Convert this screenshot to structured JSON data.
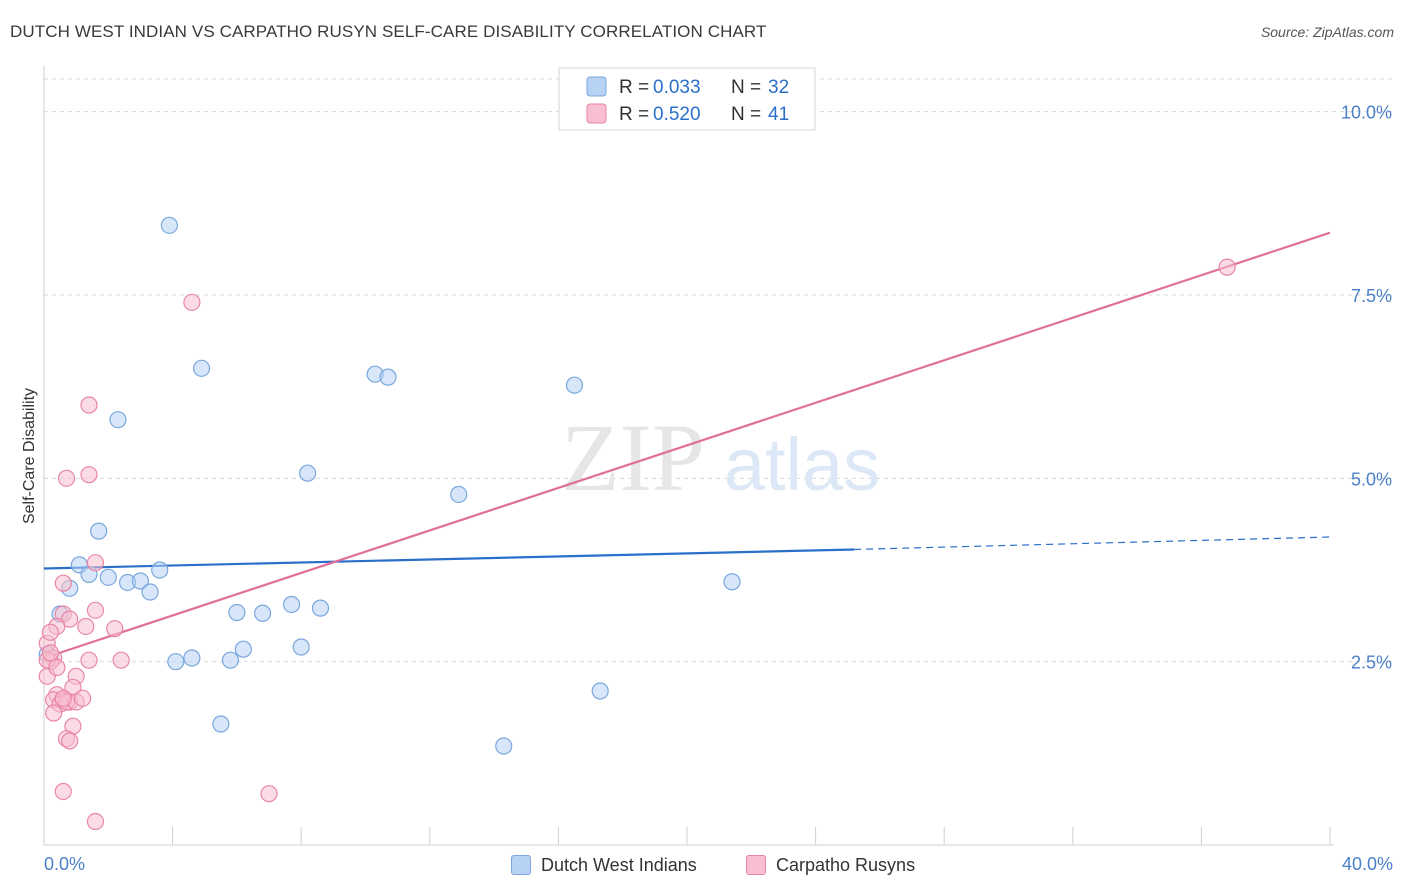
{
  "title": "DUTCH WEST INDIAN VS CARPATHO RUSYN SELF-CARE DISABILITY CORRELATION CHART",
  "source": "Source: ZipAtlas.com",
  "watermark": {
    "zip": "ZIP",
    "atlas": "atlas"
  },
  "colors": {
    "blue_fill": "#b7d2f2",
    "blue_stroke": "#7aa7de",
    "blue_line": "#2a6fc9",
    "pink_fill": "#f7bfd0",
    "pink_stroke": "#e886a6",
    "pink_line": "#e0709a",
    "axis_label": "#4a80c8",
    "grid": "#d9d9d9"
  },
  "stats_legend": [
    {
      "r_label": "R = ",
      "r_value": "0.033",
      "n_label": "N = ",
      "n_value": "32",
      "series": "blue"
    },
    {
      "r_label": "R = ",
      "r_value": "0.520",
      "n_label": "N = ",
      "n_value": "41",
      "series": "pink"
    }
  ],
  "chart_data": {
    "type": "scatter",
    "xlabel": "",
    "ylabel": "Self-Care Disability",
    "xlim": [
      0,
      40
    ],
    "ylim": [
      0,
      10.5
    ],
    "x_tick_labels": [
      "0.0%",
      "40.0%"
    ],
    "y_ticks": [
      2.5,
      5.0,
      7.5,
      10.0
    ],
    "y_tick_labels": [
      "2.5%",
      "5.0%",
      "7.5%",
      "10.0%"
    ],
    "grid": true,
    "legend_placement": "bottom-center",
    "series": [
      {
        "name": "Dutch West Indians",
        "color": "blue",
        "trend": {
          "x0": 0,
          "y0": 3.77,
          "x1": 25.2,
          "y1": 4.03,
          "dashed_to_x": 40,
          "dashed_to_y": 4.2
        },
        "points": [
          [
            3.9,
            8.45
          ],
          [
            4.9,
            6.5
          ],
          [
            2.3,
            5.8
          ],
          [
            10.3,
            6.42
          ],
          [
            10.7,
            6.38
          ],
          [
            16.5,
            6.27
          ],
          [
            8.2,
            5.07
          ],
          [
            12.9,
            4.78
          ],
          [
            1.7,
            4.28
          ],
          [
            1.1,
            3.82
          ],
          [
            1.4,
            3.69
          ],
          [
            2.0,
            3.65
          ],
          [
            2.6,
            3.58
          ],
          [
            3.0,
            3.6
          ],
          [
            3.6,
            3.75
          ],
          [
            3.3,
            3.45
          ],
          [
            0.8,
            3.5
          ],
          [
            0.5,
            3.15
          ],
          [
            7.7,
            3.28
          ],
          [
            6.0,
            3.17
          ],
          [
            6.8,
            3.16
          ],
          [
            8.6,
            3.23
          ],
          [
            21.4,
            3.59
          ],
          [
            8.0,
            2.7
          ],
          [
            6.2,
            2.67
          ],
          [
            4.6,
            2.55
          ],
          [
            4.1,
            2.5
          ],
          [
            5.8,
            2.52
          ],
          [
            0.1,
            2.6
          ],
          [
            17.3,
            2.1
          ],
          [
            5.5,
            1.65
          ],
          [
            14.3,
            1.35
          ]
        ]
      },
      {
        "name": "Carpatho Rusyns",
        "color": "pink",
        "trend": {
          "x0": 0,
          "y0": 2.55,
          "x1": 40,
          "y1": 8.35
        },
        "points": [
          [
            36.8,
            7.88
          ],
          [
            4.6,
            7.4
          ],
          [
            1.4,
            6.0
          ],
          [
            1.4,
            5.05
          ],
          [
            0.7,
            5.0
          ],
          [
            1.6,
            3.85
          ],
          [
            0.6,
            3.57
          ],
          [
            1.6,
            3.2
          ],
          [
            0.6,
            3.15
          ],
          [
            0.8,
            3.08
          ],
          [
            0.4,
            2.98
          ],
          [
            2.2,
            2.95
          ],
          [
            1.3,
            2.98
          ],
          [
            0.1,
            2.75
          ],
          [
            0.3,
            2.55
          ],
          [
            0.2,
            2.5
          ],
          [
            1.4,
            2.52
          ],
          [
            2.4,
            2.52
          ],
          [
            0.1,
            2.3
          ],
          [
            1.0,
            2.3
          ],
          [
            0.9,
            2.15
          ],
          [
            0.4,
            2.05
          ],
          [
            0.3,
            1.98
          ],
          [
            0.6,
            1.97
          ],
          [
            0.8,
            1.95
          ],
          [
            0.5,
            1.92
          ],
          [
            0.7,
            1.95
          ],
          [
            0.3,
            1.8
          ],
          [
            0.9,
            1.62
          ],
          [
            0.7,
            1.45
          ],
          [
            0.8,
            1.42
          ],
          [
            0.6,
            0.73
          ],
          [
            7.0,
            0.7
          ],
          [
            1.6,
            0.32
          ],
          [
            0.1,
            2.52
          ],
          [
            0.2,
            2.62
          ],
          [
            1.0,
            1.95
          ],
          [
            0.4,
            2.42
          ],
          [
            0.6,
            2.0
          ],
          [
            0.2,
            2.9
          ],
          [
            1.2,
            2.0
          ]
        ]
      }
    ]
  }
}
